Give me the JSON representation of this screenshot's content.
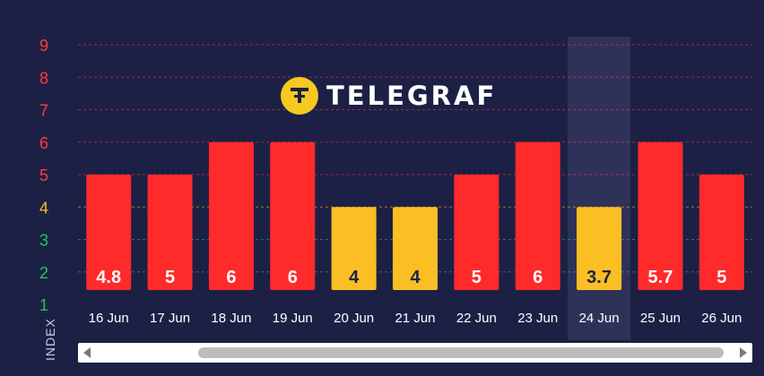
{
  "chart_data": {
    "type": "bar",
    "categories": [
      "16 Jun",
      "17 Jun",
      "18 Jun",
      "19 Jun",
      "20 Jun",
      "21 Jun",
      "22 Jun",
      "23 Jun",
      "24 Jun",
      "25 Jun",
      "26 Jun"
    ],
    "values": [
      4.8,
      5,
      6,
      6,
      4,
      4,
      5,
      6,
      3.7,
      5.7,
      5
    ],
    "bar_levels": [
      5,
      5,
      6,
      6,
      4,
      4,
      5,
      6,
      4,
      6,
      5
    ],
    "bar_colors": [
      "#ff2a2a",
      "#ff2a2a",
      "#ff2a2a",
      "#ff2a2a",
      "#fbbf24",
      "#fbbf24",
      "#ff2a2a",
      "#ff2a2a",
      "#fbbf24",
      "#ff2a2a",
      "#ff2a2a"
    ],
    "label_colors": [
      "#ffffff",
      "#ffffff",
      "#ffffff",
      "#ffffff",
      "#1d2045",
      "#1d2045",
      "#ffffff",
      "#ffffff",
      "#1d2045",
      "#ffffff",
      "#ffffff"
    ],
    "y_ticks": [
      "1",
      "2",
      "3",
      "4",
      "5",
      "6",
      "7",
      "8",
      "9"
    ],
    "y_tick_colors": [
      "#22c55e",
      "#22c55e",
      "#22c55e",
      "#fbbf24",
      "#ff3b3b",
      "#ff3b3b",
      "#ff3b3b",
      "#ff3b3b",
      "#ff3b3b"
    ],
    "ylim": [
      1,
      9
    ],
    "ylabel": "INDEX",
    "xlabel": "",
    "highlighted_category": "24 Jun",
    "grid": true
  },
  "logo": {
    "text": "TELEGRAF",
    "icon": "telegraf-logo-icon"
  },
  "scrollbar": {
    "left_icon": "arrow-left-icon",
    "right_icon": "arrow-right-icon"
  },
  "colors": {
    "background": "#1d2045",
    "highlight": "#2f3258"
  }
}
